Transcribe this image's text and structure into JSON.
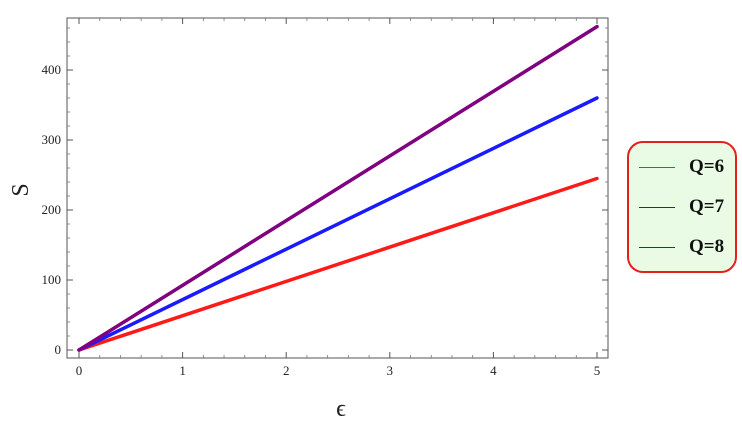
{
  "chart_data": {
    "type": "line",
    "title": "",
    "xlabel": "ϵ",
    "ylabel": "S",
    "xlim": [
      0,
      5
    ],
    "ylim": [
      0,
      470
    ],
    "x_ticks": [
      "0",
      "1",
      "2",
      "3",
      "4",
      "5"
    ],
    "y_ticks": [
      "0",
      "100",
      "200",
      "300",
      "400"
    ],
    "grid": false,
    "legend_placement": "right",
    "series": [
      {
        "name": "Q=6",
        "color": "#ff1a1a",
        "x": [
          0,
          5
        ],
        "y": [
          0,
          245
        ]
      },
      {
        "name": "Q=7",
        "color": "#1a1aff",
        "x": [
          0,
          5
        ],
        "y": [
          0,
          360
        ]
      },
      {
        "name": "Q=8",
        "color": "#800080",
        "x": [
          0,
          5
        ],
        "y": [
          0,
          462
        ]
      }
    ]
  }
}
